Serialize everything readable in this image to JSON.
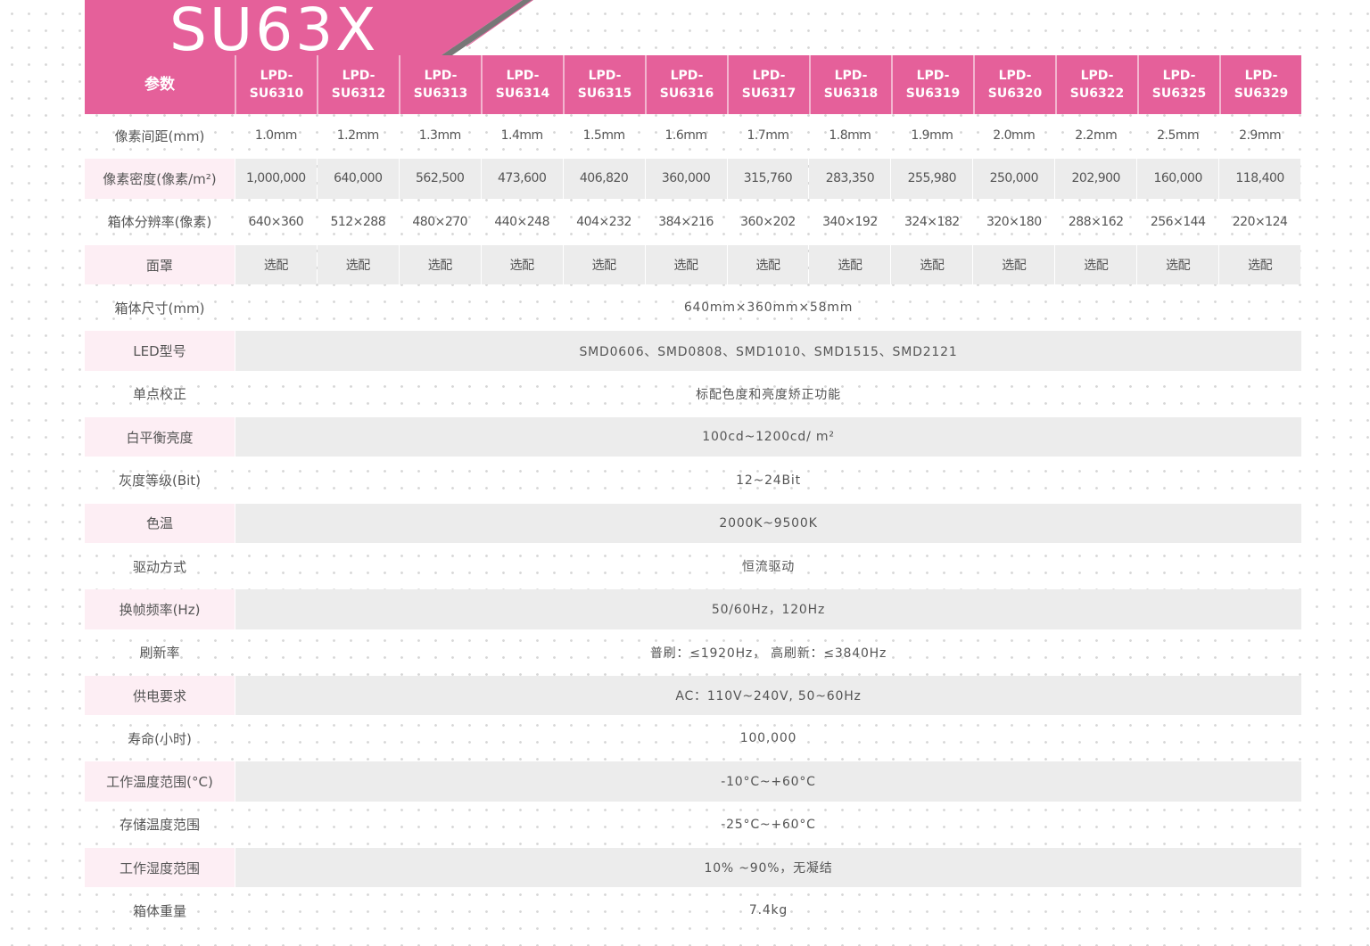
{
  "title": "SU63X",
  "colors": {
    "brand_pink": "#e5609a",
    "row_shade": "#ececec",
    "label_shade": "#fdeef4"
  },
  "header": {
    "param_label": "参数",
    "models": [
      [
        "LPD-",
        "SU6310"
      ],
      [
        "LPD-",
        "SU6312"
      ],
      [
        "LPD-",
        "SU6313"
      ],
      [
        "LPD-",
        "SU6314"
      ],
      [
        "LPD-",
        "SU6315"
      ],
      [
        "LPD-",
        "SU6316"
      ],
      [
        "LPD-",
        "SU6317"
      ],
      [
        "LPD-",
        "SU6318"
      ],
      [
        "LPD-",
        "SU6319"
      ],
      [
        "LPD-",
        "SU6320"
      ],
      [
        "LPD-",
        "SU6322"
      ],
      [
        "LPD-",
        "SU6325"
      ],
      [
        "LPD-",
        "SU6329"
      ]
    ]
  },
  "per_model_rows": [
    {
      "label": "像素间距(mm)",
      "values": [
        "1.0mm",
        "1.2mm",
        "1.3mm",
        "1.4mm",
        "1.5mm",
        "1.6mm",
        "1.7mm",
        "1.8mm",
        "1.9mm",
        "2.0mm",
        "2.2mm",
        "2.5mm",
        "2.9mm"
      ]
    },
    {
      "label": "像素密度(像素/m²)",
      "values": [
        "1,000,000",
        "640,000",
        "562,500",
        "473,600",
        "406,820",
        "360,000",
        "315,760",
        "283,350",
        "255,980",
        "250,000",
        "202,900",
        "160,000",
        "118,400"
      ]
    },
    {
      "label": "箱体分辨率(像素)",
      "values": [
        "640×360",
        "512×288",
        "480×270",
        "440×248",
        "404×232",
        "384×216",
        "360×202",
        "340×192",
        "324×182",
        "320×180",
        "288×162",
        "256×144",
        "220×124"
      ]
    },
    {
      "label": "面罩",
      "values": [
        "选配",
        "选配",
        "选配",
        "选配",
        "选配",
        "选配",
        "选配",
        "选配",
        "选配",
        "选配",
        "选配",
        "选配",
        "选配"
      ]
    }
  ],
  "shared_rows": [
    {
      "label": "箱体尺寸(mm)",
      "value": "640mm×360mm×58mm"
    },
    {
      "label": "LED型号",
      "value": "SMD0606、SMD0808、SMD1010、SMD1515、SMD2121"
    },
    {
      "label": "单点校正",
      "value": "标配色度和亮度矫正功能"
    },
    {
      "label": "白平衡亮度",
      "value": "100cd~1200cd/ m²"
    },
    {
      "label": "灰度等级(Bit)",
      "value": "12~24Bit"
    },
    {
      "label": "色温",
      "value": "2000K~9500K"
    },
    {
      "label": "驱动方式",
      "value": "恒流驱动"
    },
    {
      "label": "换帧频率(Hz)",
      "value": "50/60Hz，120Hz"
    },
    {
      "label": "刷新率",
      "value": "普刷：≤1920Hz，  高刷新：≤3840Hz"
    },
    {
      "label": "供电要求",
      "value": "AC：110V~240V, 50~60Hz"
    },
    {
      "label": "寿命(小时)",
      "value": "100,000"
    },
    {
      "label": "工作温度范围(°C)",
      "value": "-10°C~+60°C"
    },
    {
      "label": "存储温度范围",
      "value": "-25°C~+60°C"
    },
    {
      "label": "工作湿度范围",
      "value": "10% ~90%，无凝结"
    },
    {
      "label": "箱体重量",
      "value": "7.4kg"
    }
  ]
}
